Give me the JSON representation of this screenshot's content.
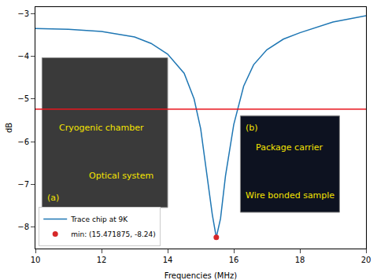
{
  "chart_data": {
    "type": "line",
    "x_label": "Frequencies (MHz)",
    "y_label": "dB",
    "xlim": [
      10,
      20
    ],
    "xticks": [
      10,
      12,
      14,
      16,
      18,
      20
    ],
    "ylim": [
      -8.5,
      -2.85
    ],
    "yticks": [
      -8,
      -7,
      -6,
      -5,
      -4,
      -3
    ],
    "grid": false,
    "legend": "lower left",
    "series": [
      {
        "name": "Trace chip at 9K",
        "color": "#1f77b4",
        "type": "line",
        "x": [
          10,
          11,
          12,
          13,
          13.5,
          14,
          14.5,
          14.8,
          15.0,
          15.2,
          15.35,
          15.471875,
          15.6,
          15.75,
          16.0,
          16.3,
          16.6,
          17,
          17.5,
          18,
          19,
          20
        ],
        "values": [
          -3.35,
          -3.37,
          -3.42,
          -3.55,
          -3.7,
          -3.95,
          -4.4,
          -5.0,
          -5.7,
          -6.8,
          -7.7,
          -8.24,
          -7.8,
          -6.8,
          -5.6,
          -4.7,
          -4.2,
          -3.85,
          -3.6,
          -3.45,
          -3.2,
          -3.05
        ]
      },
      {
        "name": "min: (15.471875, -8.24)",
        "color": "#d62728",
        "type": "scatter",
        "marker": "circle",
        "x": [
          15.471875
        ],
        "values": [
          -8.24
        ]
      }
    ],
    "hline": {
      "value": -5.24,
      "color": "#e8141c"
    },
    "insets": [
      {
        "labels": [
          "(a)",
          "Optical system",
          "Cryogenic chamber"
        ]
      },
      {
        "labels": [
          "(b)",
          "Package carrier",
          "Wire bonded sample"
        ]
      }
    ]
  }
}
